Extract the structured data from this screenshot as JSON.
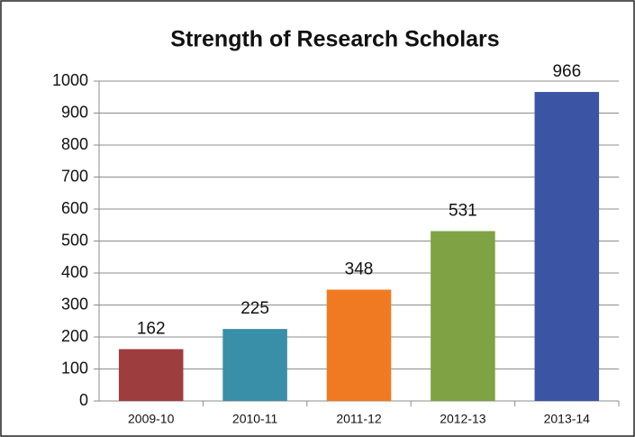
{
  "chart_data": {
    "type": "bar",
    "title": "Strength of Research Scholars",
    "categories": [
      "2009-10",
      "2010-11",
      "2011-12",
      "2012-13",
      "2013-14"
    ],
    "values": [
      162,
      225,
      348,
      531,
      966
    ],
    "colors": [
      "#9e3d3e",
      "#3a8fa8",
      "#f07a22",
      "#7fa244",
      "#3b55a4"
    ],
    "ylim": [
      0,
      1000
    ],
    "yticks": [
      0,
      100,
      200,
      300,
      400,
      500,
      600,
      700,
      800,
      900,
      1000
    ],
    "grid": true
  }
}
